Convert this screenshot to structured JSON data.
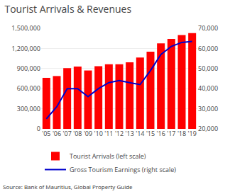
{
  "chart_data": {
    "type": "bar",
    "title": "Tourist Arrivals & Revenues",
    "annotations": [
      "Source: Bank of Mauritius, Global Property Guide"
    ],
    "categories": [
      "'05",
      "'06",
      "'07",
      "'08",
      "'09",
      "'10",
      "'11",
      "'12",
      "'13",
      "'14",
      "'15",
      "'16",
      "'17",
      "'18",
      "'19"
    ],
    "series": [
      {
        "name": "Tourist Arrivals (left scale)",
        "type": "bar",
        "color": "#ff0000",
        "values": [
          761000,
          788000,
          906000,
          930000,
          871000,
          934000,
          965000,
          965000,
          993000,
          1063000,
          1151000,
          1275000,
          1342000,
          1399000,
          1430000
        ]
      },
      {
        "name": "Gross Tourism Earnings (right scale)",
        "type": "line",
        "color": "#0000cc",
        "axis": "y2",
        "values": [
          25000,
          31000,
          40000,
          40000,
          36000,
          40000,
          43000,
          44000,
          43000,
          42000,
          49000,
          57000,
          61000,
          63000,
          63500
        ]
      }
    ],
    "ylim": [
      0,
      1500000
    ],
    "yticks": [
      0,
      {
        "value": 300000,
        "label": "300,000"
      },
      {
        "value": 600000,
        "label": "600,000"
      },
      {
        "value": 900000,
        "label": "900,000"
      },
      {
        "value": 1200000,
        "label": "1,200,000"
      },
      {
        "value": 1500000,
        "label": "1,500,000"
      }
    ],
    "y2lim": [
      20000,
      70000
    ],
    "y2ticks": [
      {
        "value": 20000,
        "label": "20,000"
      },
      {
        "value": 30000,
        "label": "30,000"
      },
      {
        "value": 40000,
        "label": "40,000"
      },
      {
        "value": 50000,
        "label": "50,000"
      },
      {
        "value": 60000,
        "label": "60,000"
      },
      {
        "value": 70000,
        "label": "70,000"
      }
    ],
    "grid": true,
    "legend": "lower left"
  }
}
